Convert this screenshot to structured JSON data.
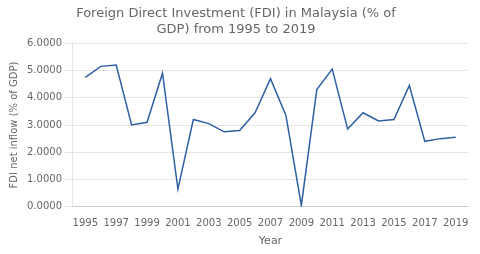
{
  "chart_data": {
    "type": "line",
    "title": "Foreign Direct Investment (FDI) in Malaysia (% of\nGDP) from 1995 to 2019",
    "x_label": "Year",
    "y_label": "FDI net inflow (% of GDP)",
    "x": [
      1995,
      1996,
      1997,
      1998,
      1999,
      2000,
      2001,
      2002,
      2003,
      2004,
      2005,
      2006,
      2007,
      2008,
      2009,
      2010,
      2011,
      2012,
      2013,
      2014,
      2015,
      2016,
      2017,
      2018,
      2019
    ],
    "values": [
      4.75,
      5.15,
      5.2,
      3.0,
      3.1,
      4.9,
      0.65,
      3.2,
      3.05,
      2.75,
      2.8,
      3.45,
      4.7,
      3.35,
      0.05,
      4.3,
      5.05,
      2.85,
      3.45,
      3.15,
      3.2,
      4.45,
      2.4,
      2.5,
      2.55
    ],
    "color": "#2E5FA3",
    "xlim": [
      1994.2,
      2019.8
    ],
    "xticks": [
      1995,
      1997,
      1999,
      2001,
      2003,
      2005,
      2007,
      2009,
      2011,
      2013,
      2015,
      2017,
      2019
    ],
    "ylim": [
      0,
      6.0
    ],
    "yticks": [
      {
        "value": 0,
        "label": "0.0000"
      },
      {
        "value": 1,
        "label": "1.0000"
      },
      {
        "value": 2,
        "label": "2.0000"
      },
      {
        "value": 3,
        "label": "3.0000"
      },
      {
        "value": 4,
        "label": "4.0000"
      },
      {
        "value": 5,
        "label": "5.0000"
      },
      {
        "value": 6,
        "label": "6.0000"
      }
    ],
    "grid": "y"
  }
}
